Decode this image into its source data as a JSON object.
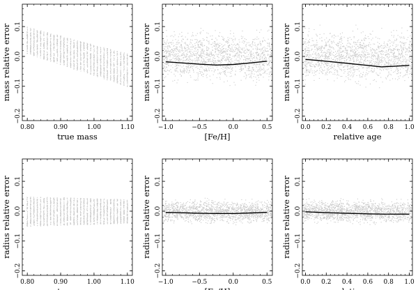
{
  "chart_data": [
    {
      "type": "scatter",
      "row": 0,
      "col": 0,
      "xlabel": "true mass",
      "ylabel": "mass relative error",
      "xlim": [
        0.785,
        1.115
      ],
      "ylim": [
        -0.215,
        0.175
      ],
      "xticks": [
        0.8,
        0.9,
        1.0,
        1.1
      ],
      "xtick_labels": [
        "0.80",
        "0.90",
        "1.00",
        "1.10"
      ],
      "yticks": [
        -0.2,
        -0.1,
        0.0,
        0.1
      ],
      "ytick_labels": [
        "−0.2",
        "−0.1",
        "0.0",
        "0.1"
      ],
      "scatter": {
        "kind": "columns",
        "x_start": 0.8,
        "x_step": 0.01,
        "count": 31,
        "upper_at_start": 0.1,
        "upper_at_end": 0.01,
        "lower_at_start": 0.01,
        "lower_at_end": -0.1
      },
      "trend": null
    },
    {
      "type": "scatter",
      "row": 0,
      "col": 1,
      "xlabel": "[Fe/H]",
      "ylabel": "mass relative error",
      "xlim": [
        -1.05,
        0.58
      ],
      "ylim": [
        -0.215,
        0.175
      ],
      "xticks": [
        -1.0,
        -0.5,
        0.0,
        0.5
      ],
      "xtick_labels": [
        "−1.0",
        "−0.5",
        "0.0",
        "0.5"
      ],
      "yticks": [
        -0.2,
        -0.1,
        0.0,
        0.1
      ],
      "ytick_labels": [
        "−0.2",
        "−0.1",
        "0.0",
        "0.1"
      ],
      "scatter": {
        "kind": "cloud",
        "y_min": -0.11,
        "y_max": 0.11
      },
      "trend": {
        "x": [
          -1.0,
          -0.75,
          -0.5,
          -0.25,
          0.0,
          0.25,
          0.5
        ],
        "y": [
          -0.018,
          -0.022,
          -0.026,
          -0.029,
          -0.027,
          -0.022,
          -0.016
        ]
      }
    },
    {
      "type": "scatter",
      "row": 0,
      "col": 2,
      "xlabel": "relative age",
      "ylabel": "mass relative error",
      "xlim": [
        -0.03,
        1.03
      ],
      "ylim": [
        -0.215,
        0.175
      ],
      "xticks": [
        0.0,
        0.2,
        0.4,
        0.6,
        0.8,
        1.0
      ],
      "xtick_labels": [
        "0.0",
        "0.2",
        "0.4",
        "0.6",
        "0.8",
        "1.0"
      ],
      "yticks": [
        -0.2,
        -0.1,
        0.0,
        0.1
      ],
      "ytick_labels": [
        "−0.2",
        "−0.1",
        "0.0",
        "0.1"
      ],
      "scatter": {
        "kind": "cloud",
        "y_min": -0.11,
        "y_max": 0.11
      },
      "trend": {
        "x": [
          0.0,
          0.2,
          0.4,
          0.6,
          0.73,
          0.85,
          1.0
        ],
        "y": [
          -0.01,
          -0.016,
          -0.023,
          -0.03,
          -0.035,
          -0.033,
          -0.03
        ]
      }
    },
    {
      "type": "scatter",
      "row": 1,
      "col": 0,
      "xlabel": "true mass",
      "ylabel": "radius relative error",
      "xlim": [
        0.785,
        1.115
      ],
      "ylim": [
        -0.215,
        0.175
      ],
      "xticks": [
        0.8,
        0.9,
        1.0,
        1.1
      ],
      "xtick_labels": [
        "0.80",
        "0.90",
        "1.00",
        "1.10"
      ],
      "yticks": [
        -0.2,
        -0.1,
        0.0,
        0.1
      ],
      "ytick_labels": [
        "−0.2",
        "−0.1",
        "0.0",
        "0.1"
      ],
      "scatter": {
        "kind": "columns",
        "x_start": 0.8,
        "x_step": 0.01,
        "count": 31,
        "upper_at_start": 0.05,
        "upper_at_end": 0.04,
        "lower_at_start": -0.05,
        "lower_at_end": -0.04
      },
      "trend": null
    },
    {
      "type": "scatter",
      "row": 1,
      "col": 1,
      "xlabel": "[Fe/H]",
      "ylabel": "radius relative error",
      "xlim": [
        -1.05,
        0.58
      ],
      "ylim": [
        -0.215,
        0.175
      ],
      "xticks": [
        -1.0,
        -0.5,
        0.0,
        0.5
      ],
      "xtick_labels": [
        "−1.0",
        "−0.5",
        "0.0",
        "0.5"
      ],
      "yticks": [
        -0.2,
        -0.1,
        0.0,
        0.1
      ],
      "ytick_labels": [
        "−0.2",
        "−0.1",
        "0.0",
        "0.1"
      ],
      "scatter": {
        "kind": "cloud",
        "y_min": -0.05,
        "y_max": 0.05
      },
      "trend": {
        "x": [
          -1.0,
          -0.5,
          -0.25,
          0.0,
          0.25,
          0.5
        ],
        "y": [
          -0.004,
          -0.007,
          -0.008,
          -0.008,
          -0.006,
          -0.004
        ]
      }
    },
    {
      "type": "scatter",
      "row": 1,
      "col": 2,
      "xlabel": "relative age",
      "ylabel": "radius relative error",
      "xlim": [
        -0.03,
        1.03
      ],
      "ylim": [
        -0.215,
        0.175
      ],
      "xticks": [
        0.0,
        0.2,
        0.4,
        0.6,
        0.8,
        1.0
      ],
      "xtick_labels": [
        "0.0",
        "0.2",
        "0.4",
        "0.6",
        "0.8",
        "1.0"
      ],
      "yticks": [
        -0.2,
        -0.1,
        0.0,
        0.1
      ],
      "ytick_labels": [
        "−0.2",
        "−0.1",
        "0.0",
        "0.1"
      ],
      "scatter": {
        "kind": "cloud",
        "y_min": -0.05,
        "y_max": 0.05
      },
      "trend": {
        "x": [
          0.0,
          0.2,
          0.4,
          0.6,
          0.75,
          1.0
        ],
        "y": [
          -0.002,
          -0.005,
          -0.007,
          -0.009,
          -0.01,
          -0.01
        ]
      }
    }
  ],
  "colors": {
    "points": "#c8c8c8",
    "trend": "#000000",
    "frame": "#000000"
  }
}
